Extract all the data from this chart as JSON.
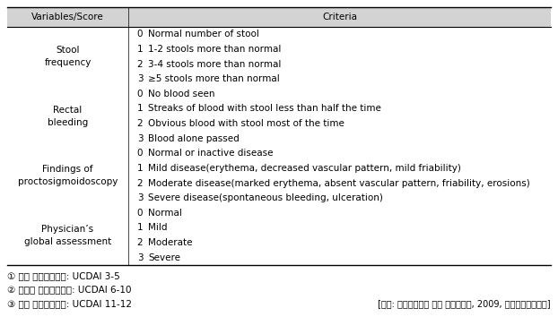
{
  "header": [
    "Variables/Score",
    "Criteria"
  ],
  "rows": [
    {
      "var": "Stool\nfrequency",
      "scores": [
        "0",
        "1",
        "2",
        "3"
      ],
      "criteria": [
        "Normal number of stool",
        "1-2 stools more than normal",
        "3-4 stools more than normal",
        "≥5 stools more than normal"
      ]
    },
    {
      "var": "Rectal\nbleeding",
      "scores": [
        "0",
        "1",
        "2",
        "3"
      ],
      "criteria": [
        "No blood seen",
        "Streaks of blood with stool less than half the time",
        "Obvious blood with stool most of the time",
        "Blood alone passed"
      ]
    },
    {
      "var": "Findings of\nproctosigmoidoscopy",
      "scores": [
        "0",
        "1",
        "2",
        "3"
      ],
      "criteria": [
        "Normal or inactive disease",
        "Mild disease(erythema, decreased vascular pattern, mild friability)",
        "Moderate disease(marked erythema, absent vascular pattern, friability, erosions)",
        "Severe disease(spontaneous bleeding, ulceration)"
      ]
    },
    {
      "var": "Physician’s\nglobal assessment",
      "scores": [
        "0",
        "1",
        "2",
        "3"
      ],
      "criteria": [
        "Normal",
        "Mild",
        "Moderate",
        "Severe"
      ]
    }
  ],
  "footnotes": [
    "① 경증 궐양성대장염: UCDAI 3-5",
    "② 중등도 궐양성대장염: UCDAI 6-10",
    "③ 중증 궐양성대장염: UCDAI 11-12"
  ],
  "source": "[자료: 궐양성대장염 진단 가이드라인, 2009, 대한소화기학회지]",
  "header_bg": "#d3d3d3",
  "body_fontsize": 7.5,
  "footnote_fontsize": 7.5,
  "fig_width": 6.22,
  "fig_height": 3.73,
  "dpi": 100
}
